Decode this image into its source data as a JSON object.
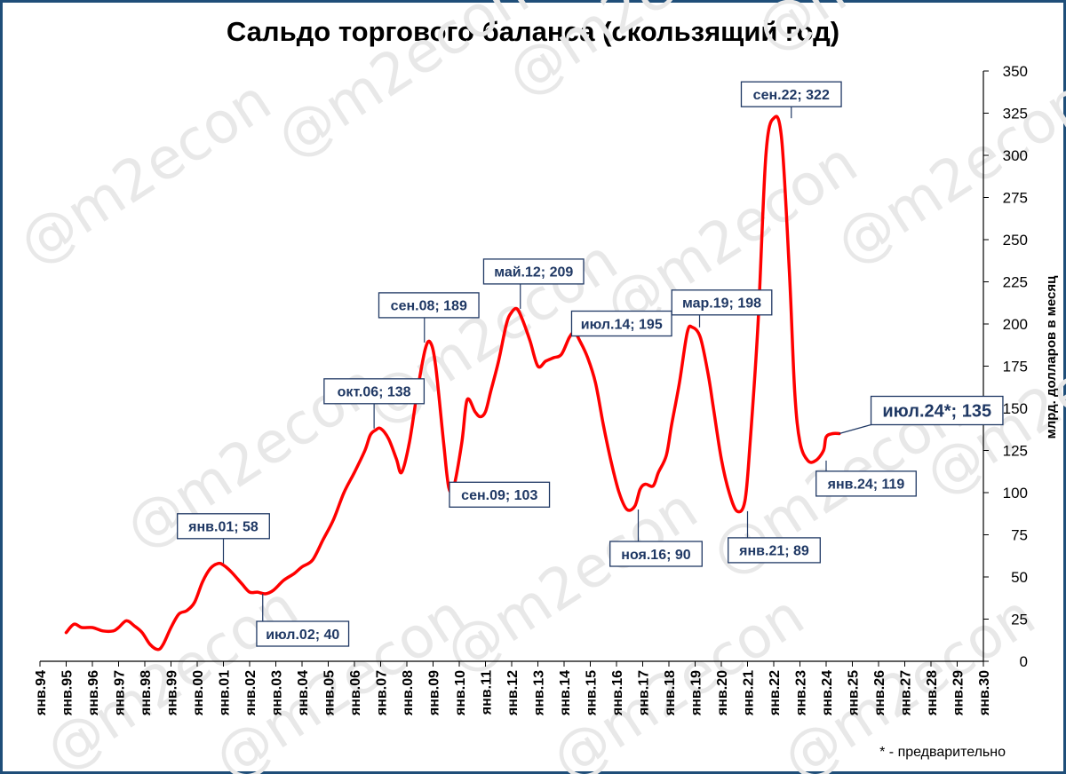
{
  "chart_data": {
    "type": "line",
    "title": "Сальдо торгового баланса (скользящий год)",
    "ylabel": "млрд. долларов в месяц",
    "xlabel": "",
    "ylim": [
      0,
      350
    ],
    "yticks": [
      0,
      25,
      50,
      75,
      100,
      125,
      150,
      175,
      200,
      225,
      250,
      275,
      300,
      325,
      350
    ],
    "xlim": [
      1994.0,
      2030.0
    ],
    "xtick_labels": [
      "янв.94",
      "янв.95",
      "янв.96",
      "янв.97",
      "янв.98",
      "янв.99",
      "янв.00",
      "янв.01",
      "янв.02",
      "янв.03",
      "янв.04",
      "янв.05",
      "янв.06",
      "янв.07",
      "янв.08",
      "янв.09",
      "янв.10",
      "янв.11",
      "янв.12",
      "янв.13",
      "янв.14",
      "янв.15",
      "янв.16",
      "янв.17",
      "янв.18",
      "янв.19",
      "янв.20",
      "янв.21",
      "янв.22",
      "янв.23",
      "янв.24",
      "янв.25",
      "янв.26",
      "янв.27",
      "янв.28",
      "янв.29",
      "янв.30"
    ],
    "grid": false,
    "line_color": "#ff0000",
    "series": [
      {
        "x": [
          1995.0,
          1995.3,
          1995.6,
          1996.0,
          1996.4,
          1996.8,
          1997.0,
          1997.3,
          1997.6,
          1997.9,
          1998.2,
          1998.5,
          1998.7,
          1999.0,
          1999.3,
          1999.6,
          1999.9,
          2000.2,
          2000.5,
          2000.8,
          2001.0,
          2001.3,
          2001.7,
          2002.0,
          2002.3,
          2002.6,
          2002.9,
          2003.3,
          2003.7,
          2004.0,
          2004.4,
          2004.8,
          2005.2,
          2005.6,
          2006.0,
          2006.4,
          2006.6,
          2006.8,
          2007.0,
          2007.3,
          2007.6,
          2007.8,
          2008.1,
          2008.4,
          2008.7,
          2008.9,
          2009.1,
          2009.4,
          2009.6,
          2009.8,
          2010.1,
          2010.3,
          2010.6,
          2010.8,
          2011.0,
          2011.2,
          2011.5,
          2011.8,
          2012.0,
          2012.2,
          2012.4,
          2012.7,
          2013.0,
          2013.3,
          2013.6,
          2013.9,
          2014.2,
          2014.4,
          2014.6,
          2014.9,
          2015.2,
          2015.5,
          2015.8,
          2016.1,
          2016.4,
          2016.7,
          2016.9,
          2017.1,
          2017.4,
          2017.6,
          2017.9,
          2018.1,
          2018.4,
          2018.7,
          2018.9,
          2019.2,
          2019.5,
          2019.7,
          2020.0,
          2020.3,
          2020.6,
          2020.9,
          2021.1,
          2021.4,
          2021.7,
          2022.0,
          2022.3,
          2022.6,
          2022.8,
          2023.0,
          2023.3,
          2023.6,
          2023.9,
          2024.0,
          2024.25,
          2024.5
        ],
        "y": [
          17,
          22,
          20,
          20,
          18,
          18,
          20,
          24,
          21,
          17,
          10,
          7,
          10,
          20,
          28,
          30,
          35,
          47,
          55,
          58,
          57,
          53,
          46,
          41,
          41,
          40,
          42,
          48,
          52,
          56,
          60,
          72,
          84,
          100,
          112,
          125,
          134,
          137,
          138,
          132,
          120,
          112,
          130,
          160,
          185,
          189,
          175,
          130,
          103,
          104,
          130,
          155,
          148,
          145,
          148,
          160,
          178,
          200,
          207,
          209,
          203,
          190,
          175,
          178,
          180,
          182,
          192,
          195,
          190,
          180,
          165,
          140,
          118,
          100,
          90,
          92,
          102,
          105,
          104,
          112,
          122,
          140,
          165,
          195,
          198,
          192,
          170,
          150,
          120,
          100,
          89,
          95,
          130,
          200,
          300,
          322,
          310,
          230,
          160,
          130,
          119,
          119,
          125,
          133,
          135,
          135
        ]
      }
    ],
    "annotations": [
      {
        "label": "янв.01; 58",
        "x": 2001.0,
        "y": 58
      },
      {
        "label": "июл.02; 40",
        "x": 2002.5,
        "y": 40
      },
      {
        "label": "окт.06; 138",
        "x": 2006.75,
        "y": 138
      },
      {
        "label": "сен.08; 189",
        "x": 2008.67,
        "y": 189
      },
      {
        "label": "сен.09; 103",
        "x": 2009.67,
        "y": 103
      },
      {
        "label": "май.12; 209",
        "x": 2012.33,
        "y": 209
      },
      {
        "label": "июл.14; 195",
        "x": 2014.5,
        "y": 195
      },
      {
        "label": "ноя.16; 90",
        "x": 2016.83,
        "y": 90
      },
      {
        "label": "мар.19; 198",
        "x": 2019.17,
        "y": 198
      },
      {
        "label": "янв.21; 89",
        "x": 2021.0,
        "y": 89
      },
      {
        "label": "сен.22; 322",
        "x": 2022.67,
        "y": 322
      },
      {
        "label": "янв.24; 119",
        "x": 2024.0,
        "y": 119
      },
      {
        "label": "июл.24*; 135",
        "x": 2024.5,
        "y": 135
      }
    ],
    "footnote": "* - предварительно",
    "watermark": "@m2econ"
  }
}
